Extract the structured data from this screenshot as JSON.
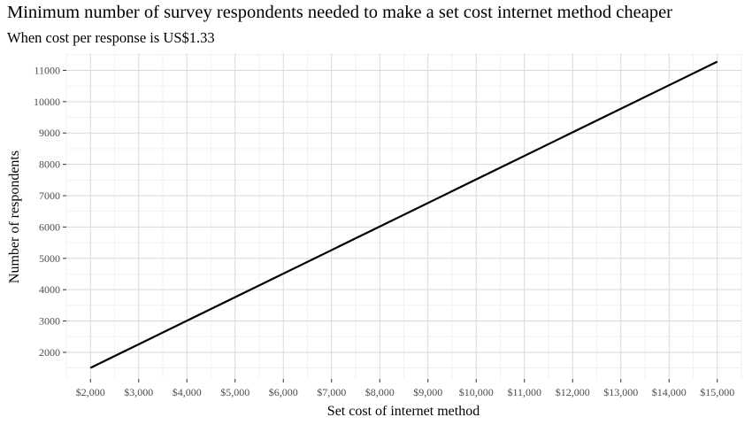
{
  "chart_data": {
    "type": "line",
    "title": "Minimum number of survey respondents needed to make a set cost internet method cheaper",
    "subtitle": "When cost per response is US$1.33",
    "xlabel": "Set cost of internet method",
    "ylabel": "Number of respondents",
    "xlim": [
      1500,
      15500
    ],
    "ylim": [
      1150,
      11550
    ],
    "x_ticks": [
      2000,
      3000,
      4000,
      5000,
      6000,
      7000,
      8000,
      9000,
      10000,
      11000,
      12000,
      13000,
      14000,
      15000
    ],
    "x_tick_labels": [
      "$2,000",
      "$3,000",
      "$4,000",
      "$5,000",
      "$6,000",
      "$7,000",
      "$8,000",
      "$9,000",
      "$10,000",
      "$11,000",
      "$12,000",
      "$13,000",
      "$14,000",
      "$15,000"
    ],
    "y_ticks": [
      2000,
      3000,
      4000,
      5000,
      6000,
      7000,
      8000,
      9000,
      10000,
      11000
    ],
    "y_tick_labels": [
      "2000",
      "3000",
      "4000",
      "5000",
      "6000",
      "7000",
      "8000",
      "9000",
      "10000",
      "11000"
    ],
    "grid": true,
    "series": [
      {
        "x": [
          2000,
          15000
        ],
        "y": [
          1504,
          11278
        ],
        "color": "#000000"
      }
    ]
  }
}
